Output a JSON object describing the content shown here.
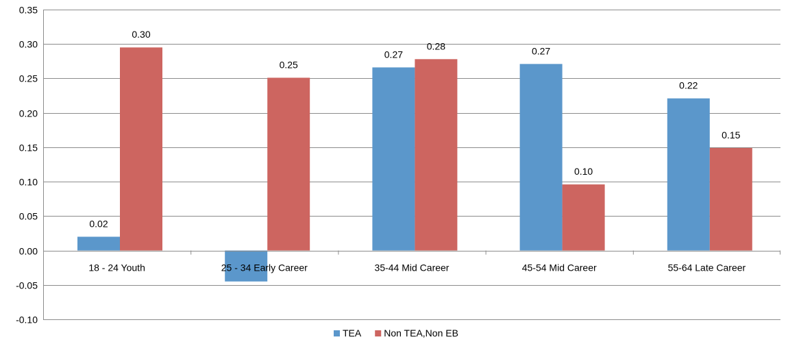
{
  "chart_data": {
    "type": "bar",
    "categories": [
      "18 - 24 Youth",
      "25 - 34 Early Career",
      "35-44 Mid Career",
      "45-54 Mid Career",
      "55-64 Late Career"
    ],
    "series": [
      {
        "name": "TEA",
        "color": "#5b97cb",
        "values": [
          0.02,
          -0.045,
          0.266,
          0.271,
          0.221
        ],
        "labels": [
          "0.02",
          "",
          "0.27",
          "0.27",
          "0.22"
        ]
      },
      {
        "name": "Non TEA,Non EB",
        "color": "#cd6560",
        "values": [
          0.295,
          0.251,
          0.278,
          0.096,
          0.149
        ],
        "labels": [
          "0.30",
          "0.25",
          "0.28",
          "0.10",
          "0.15"
        ]
      }
    ],
    "ylim": [
      -0.1,
      0.35
    ],
    "yticks": [
      "0.35",
      "0.30",
      "0.25",
      "0.20",
      "0.15",
      "0.10",
      "0.05",
      "0.00",
      "-0.05",
      "-0.10"
    ],
    "ytick_values": [
      0.35,
      0.3,
      0.25,
      0.2,
      0.15,
      0.1,
      0.05,
      0.0,
      -0.05,
      -0.1
    ],
    "grid": true,
    "legend": "bottom-center",
    "title": "",
    "xlabel": "",
    "ylabel": ""
  }
}
